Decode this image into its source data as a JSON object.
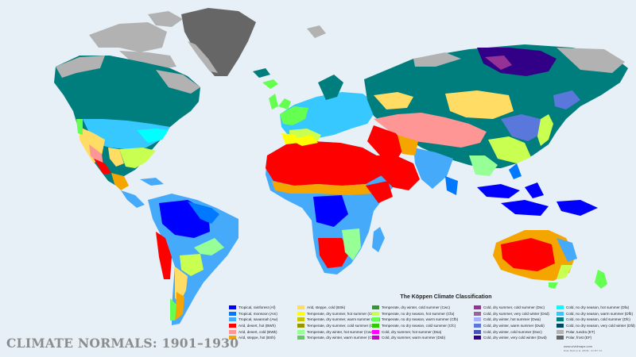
{
  "map": {
    "title": "CLIMATE NORMALS: 1901–1930",
    "legend_title": "The Köppen Climate Classification",
    "credit": "www.vividmaps.com",
    "credit2": "Data: Beck et al. (2018) · CC BY 4.0",
    "ocean_color": "#e6f0f6",
    "legend_columns": [
      [
        {
          "label": "Tropical, rainforest (Af)",
          "color": "#0000fe"
        },
        {
          "label": "Tropical, monsoon (Am)",
          "color": "#0078ff"
        },
        {
          "label": "Tropical, savannah (Aw)",
          "color": "#46aafa"
        },
        {
          "label": "Arid, desert, hot (BWh)",
          "color": "#ff0000"
        },
        {
          "label": "Arid, desert, cold (BWk)",
          "color": "#ff9696"
        },
        {
          "label": "Arid, steppe, hot (BSh)",
          "color": "#f5a500"
        }
      ],
      [
        {
          "label": "Arid, steppe, cold (BSk)",
          "color": "#ffdc64"
        },
        {
          "label": "Temperate, dry summer, hot summer (Csa)",
          "color": "#ffff00"
        },
        {
          "label": "Temperate, dry summer, warm summer (Csb)",
          "color": "#c8c800"
        },
        {
          "label": "Temperate, dry summer, cold summer (Csc)",
          "color": "#969600"
        },
        {
          "label": "Temperate, dry winter, hot summer (Cwa)",
          "color": "#96ff96"
        },
        {
          "label": "Temperate, dry winter, warm summer (Cwb)",
          "color": "#64c864"
        }
      ],
      [
        {
          "label": "Temperate, dry winter, cold summer (Cwc)",
          "color": "#329632"
        },
        {
          "label": "Temperate, no dry season, hot summer (Cfa)",
          "color": "#c8ff50"
        },
        {
          "label": "Temperate, no dry season, warm summer (Cfb)",
          "color": "#64ff50"
        },
        {
          "label": "Temperate, no dry season, cold summer (Cfc)",
          "color": "#32c800"
        },
        {
          "label": "Cold, dry summer, hot summer (Dsa)",
          "color": "#ff00ff"
        },
        {
          "label": "Cold, dry summer, warm summer (Dsb)",
          "color": "#c800c8"
        }
      ],
      [
        {
          "label": "Cold, dry summer, cold summer (Dsc)",
          "color": "#963296"
        },
        {
          "label": "Cold, dry summer, very cold winter (Dsd)",
          "color": "#966496"
        },
        {
          "label": "Cold, dry winter, hot summer (Dwa)",
          "color": "#aaafff"
        },
        {
          "label": "Cold, dry winter, warm summer (Dwb)",
          "color": "#5a78dc"
        },
        {
          "label": "Cold, dry winter, cold summer (Dwc)",
          "color": "#4b50b4"
        },
        {
          "label": "Cold, dry winter, very cold winter (Dwd)",
          "color": "#320087"
        }
      ],
      [
        {
          "label": "Cold, no dry season, hot summer (Dfa)",
          "color": "#00ffff"
        },
        {
          "label": "Cold, no dry season, warm summer (Dfb)",
          "color": "#37c8ff"
        },
        {
          "label": "Cold, no dry season, cold summer (Dfc)",
          "color": "#007d7d"
        },
        {
          "label": "Cold, no dry season, very cold winter (Dfd)",
          "color": "#00465f"
        },
        {
          "label": "Polar, tundra (ET)",
          "color": "#b2b2b2"
        },
        {
          "label": "Polar, frost (EF)",
          "color": "#666666"
        }
      ]
    ]
  }
}
